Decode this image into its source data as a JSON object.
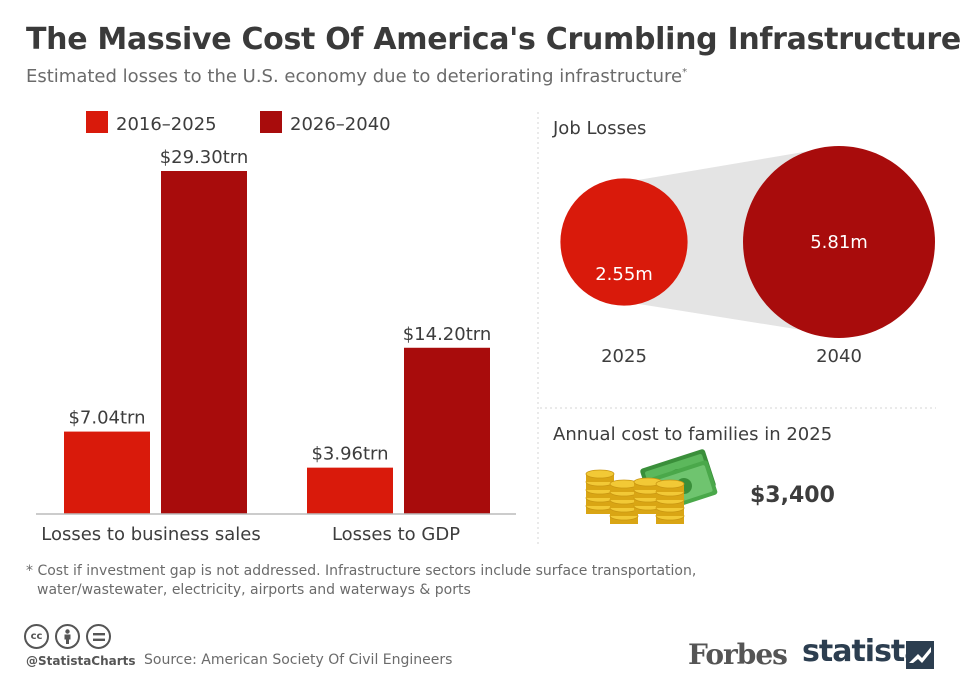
{
  "header": {
    "title": "The Massive Cost Of America's Crumbling Infrastructure",
    "subtitle": "Estimated losses to the U.S. economy due to deteriorating infrastructure",
    "subtitle_marker": "*"
  },
  "colors": {
    "series_2016_2025": "#d91a0b",
    "series_2026_2040": "#a80c0c",
    "connector": "#e4e4e4",
    "divider": "#cccccc",
    "text": "#3d3d3d"
  },
  "chart_data": [
    {
      "type": "bar",
      "categories": [
        "Losses to business sales",
        "Losses to GDP"
      ],
      "series": [
        {
          "name": "2016–2025",
          "values": [
            7.04,
            3.96
          ],
          "labels": [
            "$7.04trn",
            "$3.96trn"
          ]
        },
        {
          "name": "2026–2040",
          "values": [
            29.3,
            14.2
          ],
          "labels": [
            "$29.30trn",
            "$14.20trn"
          ]
        }
      ],
      "legend": "top-left",
      "grid": false
    },
    {
      "type": "bubble",
      "title": "Job Losses",
      "points": [
        {
          "x": "2025",
          "value": 2.55,
          "label": "2.55m"
        },
        {
          "x": "2040",
          "value": 5.81,
          "label": "5.81m"
        }
      ]
    }
  ],
  "families": {
    "title": "Annual cost to families in 2025",
    "value": "$3,400",
    "icon": "money-icon"
  },
  "footer": {
    "footnote_line1": "* Cost if investment gap is not addressed. Infrastructure sectors include surface transportation,",
    "footnote_line2": "water/wastewater, electricity, airports and waterways & ports",
    "handle": "@StatistaCharts",
    "source": "Source: American Society Of Civil Engineers",
    "forbes": "Forbes",
    "statista": "statista",
    "cc_icons": [
      "cc-icon",
      "by-icon",
      "nd-icon"
    ]
  }
}
